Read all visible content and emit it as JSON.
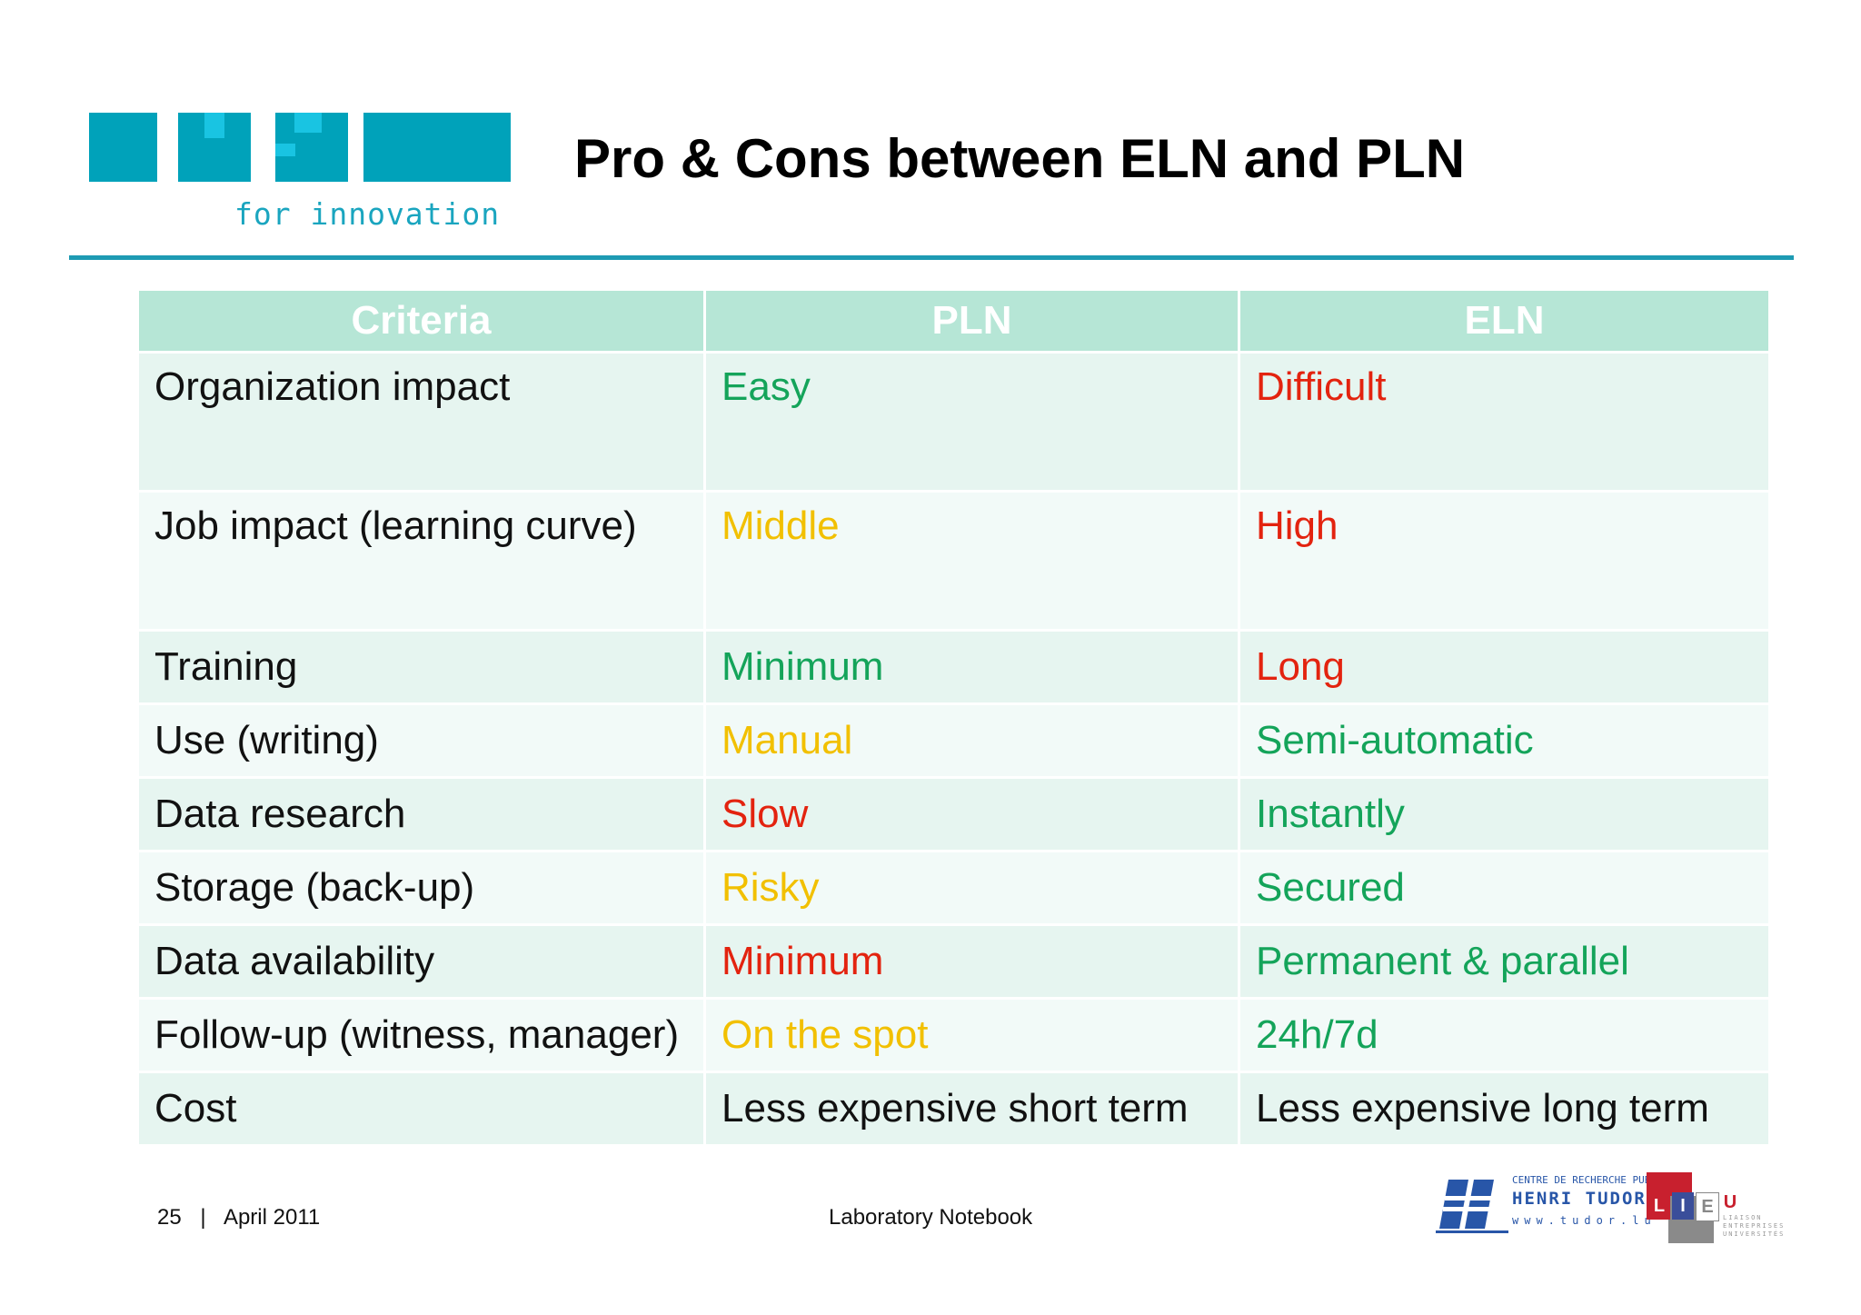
{
  "header": {
    "logo_tagline": "for innovation",
    "title": "Pro & Cons between ELN and PLN"
  },
  "table": {
    "headers": [
      "Criteria",
      "PLN",
      "ELN"
    ],
    "rows": [
      {
        "criteria": "Organization impact",
        "pln": "Easy",
        "eln": "Difficult"
      },
      {
        "criteria": "Job impact (learning curve)",
        "pln": "Middle",
        "eln": "High"
      },
      {
        "criteria": "Training",
        "pln": "Minimum",
        "eln": "Long"
      },
      {
        "criteria": "Use (writing)",
        "pln": "Manual",
        "eln": "Semi-automatic"
      },
      {
        "criteria": "Data research",
        "pln": "Slow",
        "eln": "Instantly"
      },
      {
        "criteria": "Storage (back-up)",
        "pln": "Risky",
        "eln": "Secured"
      },
      {
        "criteria": "Data availability",
        "pln": "Minimum",
        "eln": "Permanent & parallel"
      },
      {
        "criteria": "Follow-up (witness, manager)",
        "pln": "On the spot",
        "eln": "24h/7d"
      },
      {
        "criteria": "Cost",
        "pln": "Less expensive short term",
        "eln": "Less expensive long term"
      }
    ]
  },
  "colors": {
    "green": "#14a45a",
    "red": "#e3230f",
    "yellow": "#f2c000",
    "header_bg": "#b6e6d6",
    "accent": "#1e9bb3"
  },
  "footer": {
    "page_number": "25",
    "separator": "|",
    "date": "April 2011",
    "center_text": "Laboratory Notebook"
  },
  "partner_logos": {
    "tudor_line1": "CENTRE DE RECHERCHE PUBLIC",
    "tudor_line2": "HENRI TUDOR",
    "tudor_line3": "www.tudor.lu",
    "lieu_letters": [
      "L",
      "I",
      "E",
      "U"
    ],
    "lieu_words": [
      "LIAISON",
      "ENTREPRISES",
      "UNIVERSITÉS"
    ]
  }
}
